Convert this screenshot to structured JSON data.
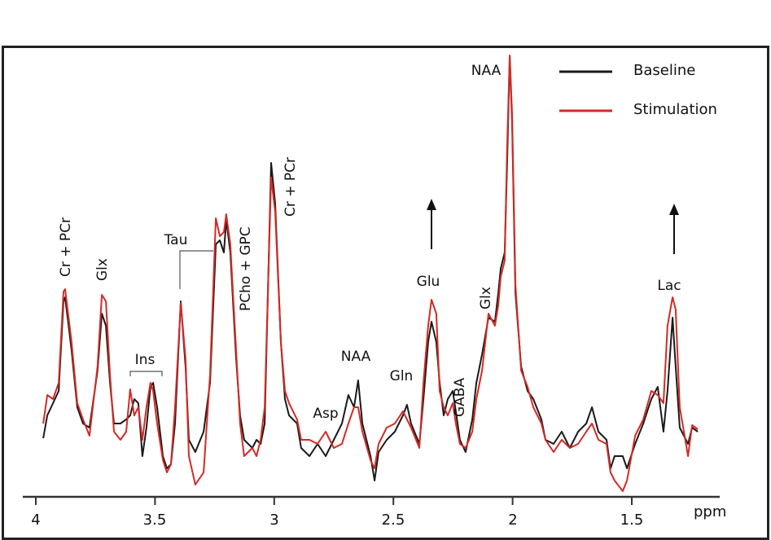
{
  "chart_data": {
    "type": "line",
    "title": "",
    "xlabel": "ppm",
    "ylabel": "",
    "xlim": [
      4.06,
      1.15
    ],
    "ylim": [
      -10,
      540
    ],
    "x_reversed": true,
    "grid": false,
    "legend_position": "top-right",
    "y_units": "arbitrary intensity (estimated)",
    "xticks": [
      "4",
      "3.5",
      "3",
      "2.5",
      "2",
      "1.5"
    ],
    "xtick_values": [
      4,
      3.5,
      3,
      2.5,
      2,
      1.5
    ],
    "x": [
      3.969,
      3.952,
      3.928,
      3.904,
      3.884,
      3.877,
      3.85,
      3.826,
      3.802,
      3.775,
      3.741,
      3.723,
      3.706,
      3.689,
      3.672,
      3.645,
      3.621,
      3.604,
      3.587,
      3.57,
      3.553,
      3.536,
      3.519,
      3.508,
      3.491,
      3.467,
      3.45,
      3.433,
      3.416,
      3.392,
      3.372,
      3.358,
      3.331,
      3.296,
      3.269,
      3.245,
      3.228,
      3.211,
      3.201,
      3.184,
      3.16,
      3.143,
      3.126,
      3.092,
      3.074,
      3.057,
      3.04,
      3.013,
      2.996,
      2.972,
      2.955,
      2.938,
      2.904,
      2.887,
      2.852,
      2.818,
      2.784,
      2.75,
      2.716,
      2.689,
      2.665,
      2.648,
      2.63,
      2.596,
      2.579,
      2.562,
      2.528,
      2.494,
      2.46,
      2.443,
      2.426,
      2.391,
      2.374,
      2.354,
      2.34,
      2.32,
      2.306,
      2.289,
      2.272,
      2.251,
      2.238,
      2.221,
      2.197,
      2.169,
      2.152,
      2.128,
      2.101,
      2.074,
      2.06,
      2.05,
      2.033,
      2.023,
      2.012,
      2.002,
      1.988,
      1.964,
      1.937,
      1.913,
      1.879,
      1.862,
      1.828,
      1.794,
      1.76,
      1.725,
      1.691,
      1.667,
      1.64,
      1.606,
      1.589,
      1.572,
      1.538,
      1.52,
      1.486,
      1.452,
      1.418,
      1.391,
      1.367,
      1.35,
      1.329,
      1.316,
      1.299,
      1.264,
      1.247,
      1.223
    ],
    "series": [
      {
        "name": "Baseline",
        "color": "#1a1a1a",
        "values": [
          62,
          90,
          105,
          120,
          230,
          235,
          170,
          100,
          80,
          75,
          145,
          215,
          200,
          130,
          80,
          80,
          85,
          90,
          110,
          105,
          40,
          75,
          125,
          130,
          100,
          40,
          25,
          30,
          80,
          230,
          150,
          60,
          45,
          70,
          130,
          300,
          305,
          290,
          330,
          290,
          160,
          90,
          60,
          50,
          60,
          55,
          80,
          400,
          350,
          180,
          110,
          90,
          80,
          50,
          40,
          55,
          40,
          60,
          80,
          115,
          100,
          133,
          80,
          40,
          10,
          45,
          60,
          70,
          90,
          103,
          80,
          55,
          110,
          180,
          205,
          180,
          130,
          90,
          110,
          120,
          95,
          60,
          45,
          85,
          130,
          165,
          210,
          205,
          240,
          270,
          290,
          400,
          530,
          450,
          240,
          150,
          120,
          110,
          85,
          60,
          55,
          70,
          50,
          70,
          80,
          100,
          70,
          60,
          25,
          40,
          40,
          25,
          55,
          80,
          110,
          125,
          70,
          120,
          210,
          150,
          75,
          55,
          75,
          70
        ]
      },
      {
        "name": "Stimulation",
        "color": "#d42a27",
        "values": [
          80,
          115,
          110,
          130,
          242,
          245,
          180,
          105,
          85,
          65,
          150,
          238,
          230,
          140,
          70,
          60,
          70,
          122,
          90,
          100,
          60,
          100,
          130,
          120,
          80,
          35,
          20,
          30,
          100,
          228,
          160,
          40,
          5,
          20,
          140,
          332,
          310,
          315,
          337,
          300,
          170,
          80,
          40,
          50,
          40,
          60,
          100,
          382,
          340,
          180,
          120,
          105,
          85,
          60,
          60,
          55,
          70,
          50,
          55,
          80,
          100,
          100,
          70,
          35,
          25,
          55,
          75,
          80,
          95,
          85,
          75,
          50,
          130,
          200,
          232,
          215,
          120,
          100,
          90,
          105,
          80,
          55,
          50,
          70,
          110,
          145,
          215,
          200,
          225,
          260,
          280,
          420,
          532,
          460,
          250,
          145,
          125,
          100,
          80,
          60,
          45,
          60,
          50,
          55,
          70,
          80,
          60,
          55,
          20,
          10,
          -3,
          10,
          65,
          85,
          120,
          115,
          105,
          200,
          235,
          220,
          100,
          40,
          78,
          73
        ]
      }
    ],
    "annotations": {
      "cr_pcr_left": "Cr + PCr",
      "glx_left": "Glx",
      "ins": "Ins",
      "tau": "Tau",
      "pcho_gpc": "PCho + GPC",
      "cr_pcr_mid": "Cr + PCr",
      "asp": "Asp",
      "naa_small": "NAA",
      "gln": "Gln",
      "glu": "Glu",
      "gaba": "GABA",
      "glx_right": "Glx",
      "naa_main": "NAA",
      "lac": "Lac"
    }
  }
}
